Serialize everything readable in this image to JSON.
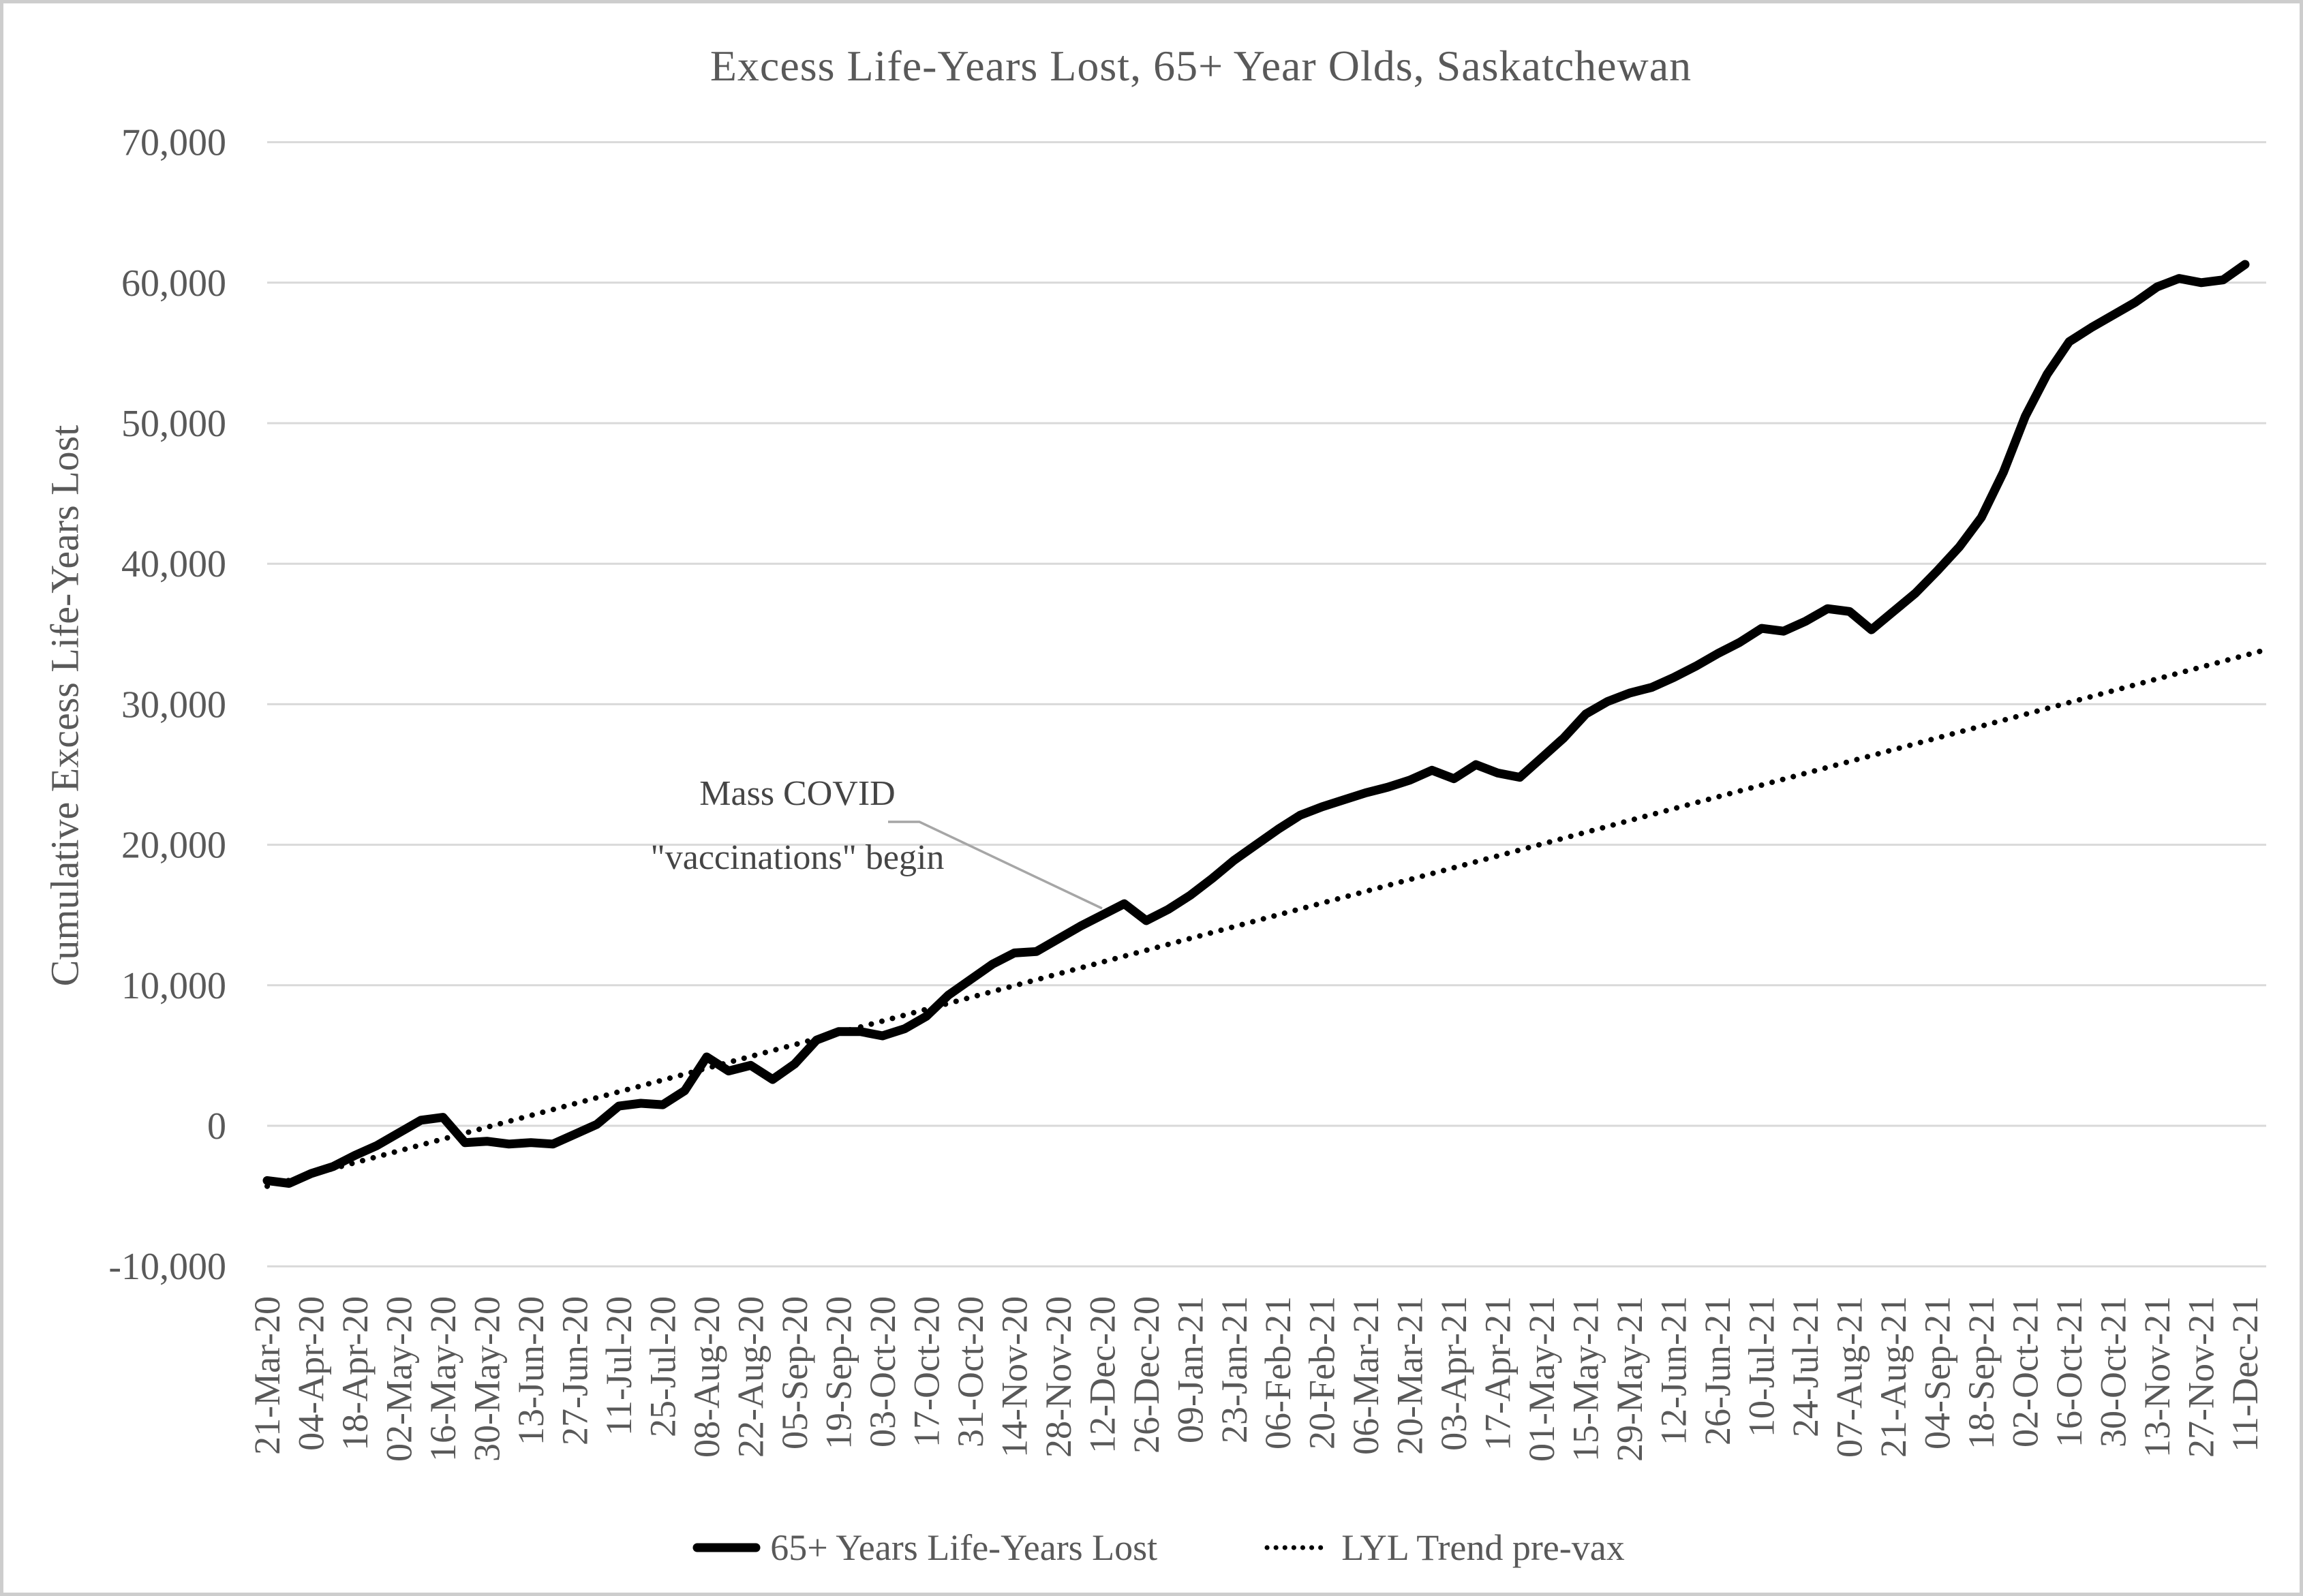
{
  "title": "Excess Life-Years Lost, 65+ Year Olds, Saskatchewan",
  "y_axis_title": "Cumulative Excess Life-Years Lost",
  "annotation": {
    "line1": "Mass COVID",
    "line2": "\"vaccinations\" begin"
  },
  "legend": {
    "series_label": "65+ Years Life-Years Lost",
    "trend_label": "LYL Trend pre-vax"
  },
  "colors": {
    "text": "#595959",
    "annotation_text": "#454545",
    "gridline": "#d9d9d9",
    "series_line": "#000000",
    "trend_line": "#000000",
    "leader_line": "#a6a6a6",
    "frame_border": "#cdcdcd",
    "background": "#ffffff"
  },
  "chart_data": {
    "type": "line",
    "title": "Excess Life-Years Lost, 65+ Year Olds, Saskatchewan",
    "xlabel": "",
    "ylabel": "Cumulative Excess Life-Years Lost",
    "ylim": [
      -10000,
      70000
    ],
    "y_tick_step": 10000,
    "y_tick_values": [
      70000,
      60000,
      50000,
      40000,
      30000,
      20000,
      10000,
      0,
      -10000
    ],
    "grid": "horizontal",
    "legend_position": "bottom",
    "x_tick_labels": [
      "21-Mar-20",
      "04-Apr-20",
      "18-Apr-20",
      "02-May-20",
      "16-May-20",
      "30-May-20",
      "13-Jun-20",
      "27-Jun-20",
      "11-Jul-20",
      "25-Jul-20",
      "08-Aug-20",
      "22-Aug-20",
      "05-Sep-20",
      "19-Sep-20",
      "03-Oct-20",
      "17-Oct-20",
      "31-Oct-20",
      "14-Nov-20",
      "28-Nov-20",
      "12-Dec-20",
      "26-Dec-20",
      "09-Jan-21",
      "23-Jan-21",
      "06-Feb-21",
      "20-Feb-21",
      "06-Mar-21",
      "20-Mar-21",
      "03-Apr-21",
      "17-Apr-21",
      "01-May-21",
      "15-May-21",
      "29-May-21",
      "12-Jun-21",
      "26-Jun-21",
      "10-Jul-21",
      "24-Jul-21",
      "07-Aug-21",
      "21-Aug-21",
      "04-Sep-21",
      "18-Sep-21",
      "02-Oct-21",
      "16-Oct-21",
      "30-Oct-21",
      "13-Nov-21",
      "27-Nov-21",
      "11-Dec-21"
    ],
    "x_tick_every_n_points": 2,
    "series": [
      {
        "name": "65+ Years Life-Years Lost",
        "style": "solid-thick",
        "dates": [
          "21-Mar-20",
          "28-Mar-20",
          "04-Apr-20",
          "11-Apr-20",
          "18-Apr-20",
          "25-Apr-20",
          "02-May-20",
          "09-May-20",
          "16-May-20",
          "23-May-20",
          "30-May-20",
          "06-Jun-20",
          "13-Jun-20",
          "20-Jun-20",
          "27-Jun-20",
          "04-Jul-20",
          "11-Jul-20",
          "18-Jul-20",
          "25-Jul-20",
          "01-Aug-20",
          "08-Aug-20",
          "15-Aug-20",
          "22-Aug-20",
          "29-Aug-20",
          "05-Sep-20",
          "12-Sep-20",
          "19-Sep-20",
          "26-Sep-20",
          "03-Oct-20",
          "10-Oct-20",
          "17-Oct-20",
          "24-Oct-20",
          "31-Oct-20",
          "07-Nov-20",
          "14-Nov-20",
          "21-Nov-20",
          "28-Nov-20",
          "05-Dec-20",
          "12-Dec-20",
          "19-Dec-20",
          "26-Dec-20",
          "02-Jan-21",
          "09-Jan-21",
          "16-Jan-21",
          "23-Jan-21",
          "30-Jan-21",
          "06-Feb-21",
          "13-Feb-21",
          "20-Feb-21",
          "27-Feb-21",
          "06-Mar-21",
          "13-Mar-21",
          "20-Mar-21",
          "27-Mar-21",
          "03-Apr-21",
          "10-Apr-21",
          "17-Apr-21",
          "24-Apr-21",
          "01-May-21",
          "08-May-21",
          "15-May-21",
          "22-May-21",
          "29-May-21",
          "05-Jun-21",
          "12-Jun-21",
          "19-Jun-21",
          "26-Jun-21",
          "03-Jul-21",
          "10-Jul-21",
          "17-Jul-21",
          "24-Jul-21",
          "31-Jul-21",
          "07-Aug-21",
          "14-Aug-21",
          "21-Aug-21",
          "28-Aug-21",
          "04-Sep-21",
          "11-Sep-21",
          "18-Sep-21",
          "25-Sep-21",
          "02-Oct-21",
          "09-Oct-21",
          "16-Oct-21",
          "23-Oct-21",
          "30-Oct-21",
          "06-Nov-21",
          "13-Nov-21",
          "20-Nov-21",
          "27-Nov-21",
          "04-Dec-21",
          "11-Dec-21"
        ],
        "values": [
          -3900,
          -4100,
          -3400,
          -2900,
          -2100,
          -1400,
          -500,
          400,
          600,
          -1200,
          -1100,
          -1300,
          -1200,
          -1300,
          -600,
          100,
          1400,
          1600,
          1500,
          2500,
          4900,
          3900,
          4300,
          3300,
          4400,
          6100,
          6700,
          6700,
          6400,
          6900,
          7800,
          9300,
          10400,
          11500,
          12300,
          12400,
          13300,
          14200,
          15000,
          15800,
          14600,
          15400,
          16400,
          17600,
          18900,
          20000,
          21100,
          22100,
          22700,
          23200,
          23700,
          24100,
          24600,
          25300,
          24700,
          25700,
          25100,
          24800,
          26200,
          27600,
          29300,
          30200,
          30800,
          31200,
          31900,
          32700,
          33600,
          34400,
          35400,
          35200,
          35900,
          36800,
          36600,
          35300,
          36600,
          37900,
          39500,
          41200,
          43300,
          46500,
          50500,
          53500,
          55800,
          56800,
          57700,
          58600,
          59700,
          60300,
          60000,
          60200,
          61300
        ]
      },
      {
        "name": "LYL Trend pre-vax",
        "style": "dotted",
        "trend_start_value": -4300,
        "trend_end_value": 33900,
        "trend_start_week": 0,
        "trend_end_week": 91
      }
    ],
    "annotation": {
      "text": "Mass COVID \"vaccinations\" begin",
      "points_to_date": "12-Dec-20",
      "points_to_value": 15000
    }
  }
}
